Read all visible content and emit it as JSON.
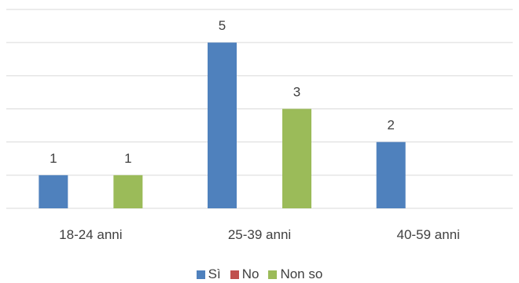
{
  "chart_data": {
    "type": "bar",
    "categories": [
      "18-24 anni",
      "25-39 anni",
      "40-59 anni"
    ],
    "series": [
      {
        "name": "Sì",
        "values": [
          1,
          5,
          2
        ],
        "color": "#4f81bd"
      },
      {
        "name": "No",
        "values": [
          0,
          0,
          0
        ],
        "color": "#c0504d"
      },
      {
        "name": "Non so",
        "values": [
          1,
          3,
          0
        ],
        "color": "#9bbb59"
      }
    ],
    "ylim": [
      0,
      6
    ],
    "grid": true,
    "legend": "bottom"
  }
}
